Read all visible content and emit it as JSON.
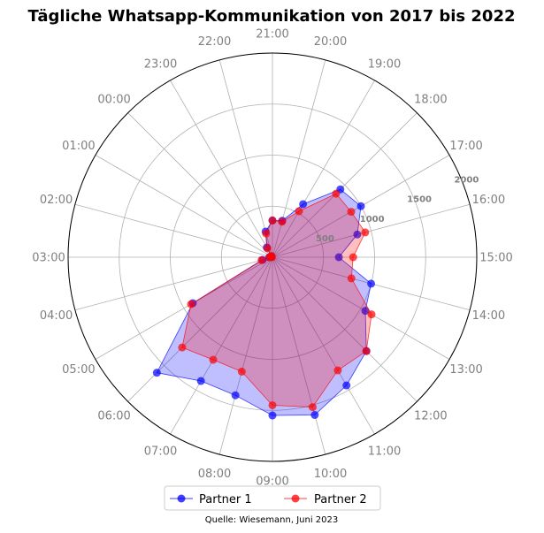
{
  "chart_data": {
    "type": "radar",
    "title": "Tägliche Whatsapp-Kommunikation von 2017 bis 2022",
    "categories": [
      "00:00",
      "01:00",
      "02:00",
      "03:00",
      "04:00",
      "05:00",
      "06:00",
      "07:00",
      "08:00",
      "09:00",
      "10:00",
      "11:00",
      "12:00",
      "13:00",
      "14:00",
      "15:00",
      "16:00",
      "17:00",
      "18:00",
      "19:00",
      "20:00",
      "21:00",
      "22:00",
      "23:00"
    ],
    "radial_ticks": [
      500,
      1000,
      1500,
      2000
    ],
    "radial_tick_labels": [
      "500",
      "1000",
      "1500",
      "2000"
    ],
    "rlim": [
      0,
      2000
    ],
    "grid": true,
    "legend_position": "bottom-center",
    "series": [
      {
        "name": "Partner 1",
        "color": "#0000ff",
        "values": [
          15,
          10,
          8,
          30,
          100,
          900,
          1600,
          1400,
          1400,
          1550,
          1600,
          1450,
          1300,
          1050,
          1000,
          650,
          860,
          1000,
          940,
          600,
          370,
          360,
          260,
          110
        ]
      },
      {
        "name": "Partner 2",
        "color": "#ff0000",
        "values": [
          15,
          10,
          8,
          30,
          110,
          920,
          1250,
          1160,
          1160,
          1450,
          1520,
          1280,
          1300,
          1120,
          800,
          790,
          940,
          890,
          880,
          520,
          360,
          360,
          240,
          100
        ]
      }
    ],
    "source": "Quelle: Wiesemann, Juni 2023"
  }
}
